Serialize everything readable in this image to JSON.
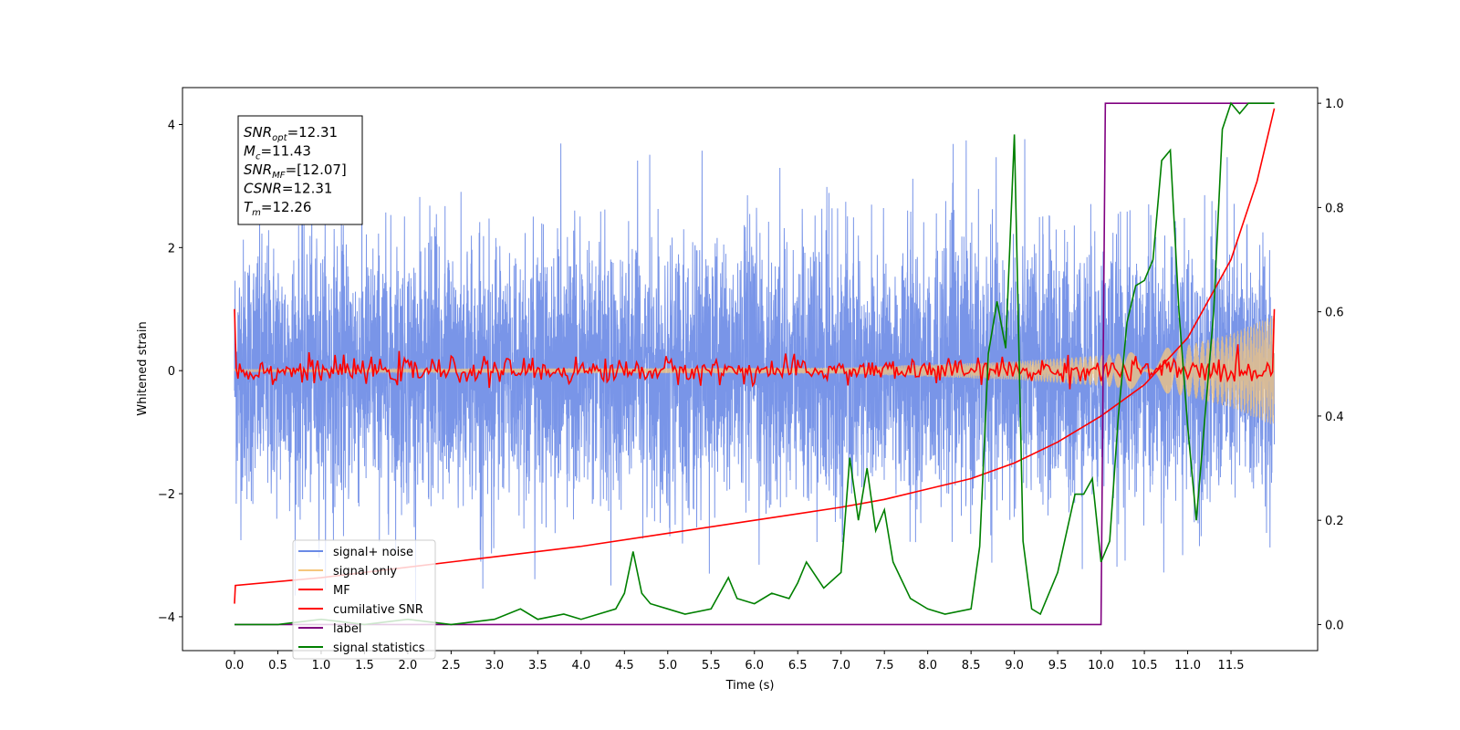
{
  "chart_data": {
    "type": "line",
    "xlabel": "Time (s)",
    "ylabel": "Whitened strain",
    "xlim": [
      -0.6,
      12.5
    ],
    "ylim": [
      -4.55,
      4.6
    ],
    "ylim_right": [
      -0.05,
      1.03
    ],
    "x_ticks": [
      "0.0",
      "0.5",
      "1.0",
      "1.5",
      "2.0",
      "2.5",
      "3.0",
      "3.5",
      "4.0",
      "4.5",
      "5.0",
      "5.5",
      "6.0",
      "6.5",
      "7.0",
      "7.5",
      "8.0",
      "8.5",
      "9.0",
      "9.5",
      "10.0",
      "10.5",
      "11.0",
      "11.5"
    ],
    "y_ticks": [
      "−4",
      "−2",
      "0",
      "2",
      "4"
    ],
    "y_ticks_right": [
      "0.0",
      "0.2",
      "0.4",
      "0.6",
      "0.8",
      "1.0"
    ],
    "legend_position": "lower-left",
    "info_box": [
      "SNR_opt=12.31",
      "M_c=11.43",
      "SNR_MF=[12.07]",
      "CSNR=12.31",
      "T_m=12.26"
    ],
    "info_lines": [
      {
        "base": "SNR",
        "sub": "opt",
        "rest": "=12.31"
      },
      {
        "base": "M",
        "sub": "c",
        "rest": "=11.43"
      },
      {
        "base": "SNR",
        "sub": "MF",
        "rest": "=[12.07]"
      },
      {
        "base": "CSNR",
        "sub": "",
        "rest": "=12.31"
      },
      {
        "base": "T",
        "sub": "m",
        "rest": "=12.26"
      }
    ],
    "series": [
      {
        "name": "signal+ noise",
        "color": "#6a8ae6",
        "axis": "left",
        "envelope": [
          [
            0.0,
            3.9
          ],
          [
            12.0,
            3.9
          ]
        ]
      },
      {
        "name": "signal only",
        "color": "#f5c77e",
        "axis": "left",
        "envelope": [
          [
            0.0,
            0.02
          ],
          [
            7.0,
            0.05
          ],
          [
            8.0,
            0.1
          ],
          [
            9.0,
            0.15
          ],
          [
            10.0,
            0.25
          ],
          [
            10.5,
            0.32
          ],
          [
            11.0,
            0.42
          ],
          [
            11.5,
            0.6
          ],
          [
            12.0,
            0.9
          ]
        ]
      },
      {
        "name": "MF",
        "color": "#ff0000",
        "axis": "left",
        "start": 1.0,
        "end": 1.0,
        "amplitude": 0.1
      },
      {
        "name": "cumilative SNR",
        "color": "#ff0000",
        "axis": "right",
        "x": [
          0.0,
          0.01,
          1.0,
          2.0,
          3.0,
          4.0,
          5.0,
          6.0,
          7.0,
          7.5,
          8.0,
          8.5,
          9.0,
          9.5,
          10.0,
          10.5,
          11.0,
          11.5,
          11.8,
          12.0
        ],
        "y": [
          0.04,
          0.075,
          0.09,
          0.11,
          0.13,
          0.15,
          0.175,
          0.2,
          0.225,
          0.24,
          0.26,
          0.28,
          0.31,
          0.35,
          0.4,
          0.46,
          0.55,
          0.7,
          0.85,
          0.99
        ]
      },
      {
        "name": "label",
        "color": "#800080",
        "axis": "right",
        "x": [
          0.0,
          10.0,
          10.05,
          12.0
        ],
        "y": [
          0.0,
          0.0,
          1.0,
          1.0
        ]
      },
      {
        "name": "signal statistics",
        "color": "#008000",
        "axis": "right",
        "x": [
          0.0,
          0.5,
          1.0,
          1.5,
          2.0,
          2.5,
          3.0,
          3.3,
          3.5,
          3.8,
          4.0,
          4.2,
          4.4,
          4.5,
          4.6,
          4.7,
          4.8,
          5.0,
          5.2,
          5.5,
          5.7,
          5.8,
          6.0,
          6.2,
          6.4,
          6.5,
          6.6,
          6.8,
          7.0,
          7.1,
          7.2,
          7.3,
          7.4,
          7.5,
          7.6,
          7.8,
          8.0,
          8.2,
          8.5,
          8.6,
          8.7,
          8.8,
          8.9,
          9.0,
          9.1,
          9.2,
          9.3,
          9.5,
          9.7,
          9.8,
          9.9,
          10.0,
          10.1,
          10.2,
          10.3,
          10.4,
          10.5,
          10.6,
          10.7,
          10.8,
          10.9,
          11.0,
          11.1,
          11.2,
          11.3,
          11.4,
          11.5,
          11.6,
          11.7,
          11.8,
          11.9,
          12.0
        ],
        "y": [
          0.0,
          0.0,
          0.01,
          0.0,
          0.01,
          0.0,
          0.01,
          0.03,
          0.01,
          0.02,
          0.01,
          0.02,
          0.03,
          0.06,
          0.14,
          0.06,
          0.04,
          0.03,
          0.02,
          0.03,
          0.09,
          0.05,
          0.04,
          0.06,
          0.05,
          0.08,
          0.12,
          0.07,
          0.1,
          0.32,
          0.2,
          0.3,
          0.18,
          0.22,
          0.12,
          0.05,
          0.03,
          0.02,
          0.03,
          0.15,
          0.52,
          0.62,
          0.53,
          0.94,
          0.16,
          0.03,
          0.02,
          0.1,
          0.25,
          0.25,
          0.28,
          0.12,
          0.16,
          0.4,
          0.58,
          0.65,
          0.66,
          0.7,
          0.89,
          0.91,
          0.6,
          0.38,
          0.2,
          0.4,
          0.6,
          0.95,
          1.0,
          0.98,
          1.0,
          1.0,
          1.0,
          1.0
        ]
      }
    ]
  }
}
